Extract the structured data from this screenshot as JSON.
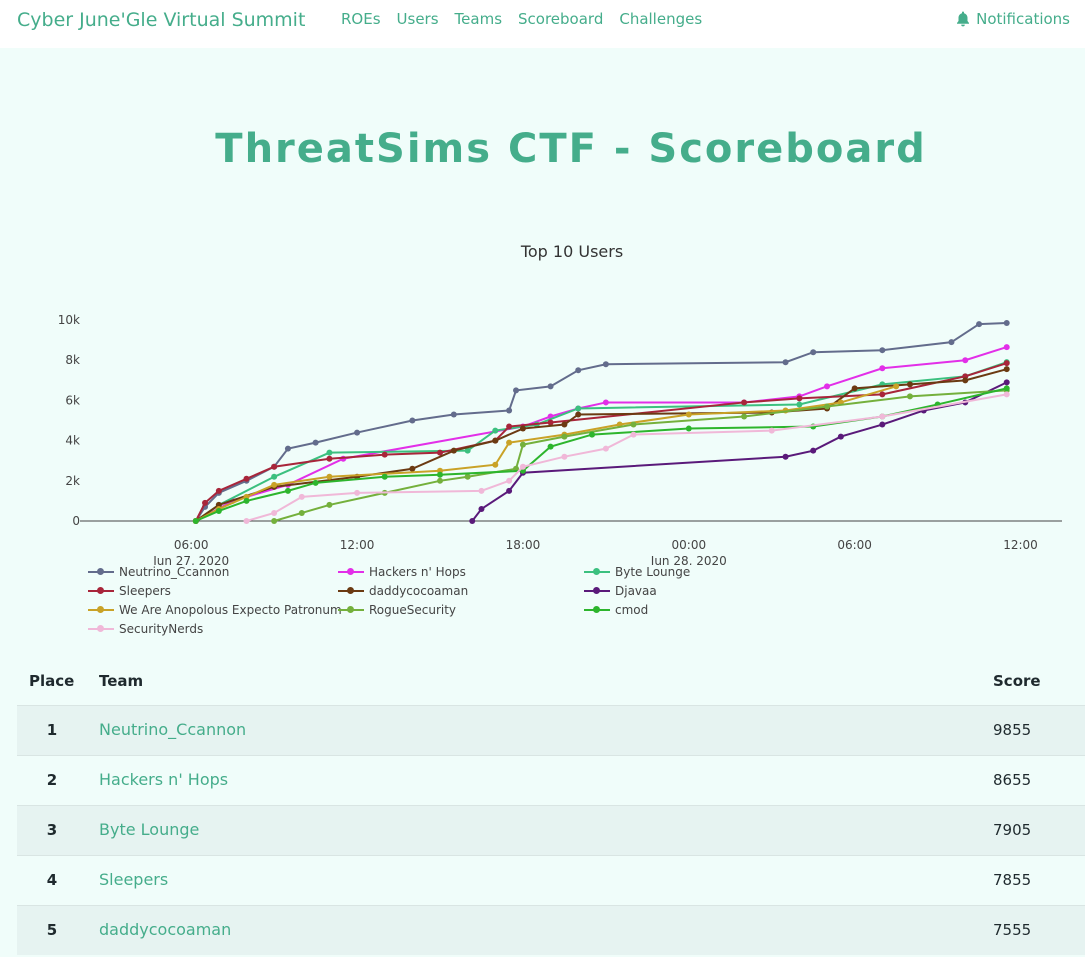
{
  "navbar": {
    "brand": "Cyber June'Gle Virtual Summit",
    "links": [
      "ROEs",
      "Users",
      "Teams",
      "Scoreboard",
      "Challenges"
    ],
    "notifications_label": "Notifications",
    "notifications_icon": "bell-icon"
  },
  "page": {
    "title": "ThreatSims CTF - Scoreboard"
  },
  "chart_data": {
    "type": "line",
    "title": "Top 10 Users",
    "x_axis": {
      "type": "date",
      "range": [
        "2020-06-27 02:16",
        "2020-06-28 13:30"
      ],
      "ticks": [
        {
          "value": "2020-06-27 06:00",
          "label": "06:00",
          "sublabel": "Jun 27, 2020"
        },
        {
          "value": "2020-06-27 12:00",
          "label": "12:00"
        },
        {
          "value": "2020-06-27 18:00",
          "label": "18:00"
        },
        {
          "value": "2020-06-28 00:00",
          "label": "00:00",
          "sublabel": "Jun 28, 2020"
        },
        {
          "value": "2020-06-28 06:00",
          "label": "06:00"
        },
        {
          "value": "2020-06-28 12:00",
          "label": "12:00"
        }
      ]
    },
    "y_axis": {
      "range": [
        0,
        10500
      ],
      "ticks": [
        {
          "value": 0,
          "label": "0"
        },
        {
          "value": 2000,
          "label": "2k"
        },
        {
          "value": 4000,
          "label": "4k"
        },
        {
          "value": 6000,
          "label": "6k"
        },
        {
          "value": 8000,
          "label": "8k"
        },
        {
          "value": 10000,
          "label": "10k"
        }
      ]
    },
    "grid": false,
    "legend": "bottom",
    "series": [
      {
        "name": "Neutrino_Ccannon",
        "color": "#636c8c",
        "points": [
          [
            "2020-06-27 06:10",
            0
          ],
          [
            "2020-06-27 06:30",
            700
          ],
          [
            "2020-06-27 07:00",
            1400
          ],
          [
            "2020-06-27 08:00",
            2000
          ],
          [
            "2020-06-27 09:00",
            2700
          ],
          [
            "2020-06-27 09:30",
            3600
          ],
          [
            "2020-06-27 10:30",
            3900
          ],
          [
            "2020-06-27 12:00",
            4400
          ],
          [
            "2020-06-27 14:00",
            5000
          ],
          [
            "2020-06-27 15:30",
            5300
          ],
          [
            "2020-06-27 17:30",
            5500
          ],
          [
            "2020-06-27 17:45",
            6500
          ],
          [
            "2020-06-27 19:00",
            6700
          ],
          [
            "2020-06-27 20:00",
            7500
          ],
          [
            "2020-06-27 21:00",
            7800
          ],
          [
            "2020-06-28 03:30",
            7900
          ],
          [
            "2020-06-28 04:30",
            8400
          ],
          [
            "2020-06-28 07:00",
            8500
          ],
          [
            "2020-06-28 09:30",
            8900
          ],
          [
            "2020-06-28 10:30",
            9800
          ],
          [
            "2020-06-28 11:30",
            9855
          ]
        ]
      },
      {
        "name": "Hackers n' Hops",
        "color": "#e22fe8",
        "points": [
          [
            "2020-06-27 06:10",
            0
          ],
          [
            "2020-06-27 07:30",
            1000
          ],
          [
            "2020-06-27 09:30",
            1800
          ],
          [
            "2020-06-27 11:30",
            3100
          ],
          [
            "2020-06-27 18:00",
            4700
          ],
          [
            "2020-06-27 19:00",
            5200
          ],
          [
            "2020-06-27 20:00",
            5600
          ],
          [
            "2020-06-27 21:00",
            5900
          ],
          [
            "2020-06-28 02:00",
            5900
          ],
          [
            "2020-06-28 04:00",
            6200
          ],
          [
            "2020-06-28 05:00",
            6700
          ],
          [
            "2020-06-28 07:00",
            7600
          ],
          [
            "2020-06-28 10:00",
            8000
          ],
          [
            "2020-06-28 11:30",
            8655
          ]
        ]
      },
      {
        "name": "Byte Lounge",
        "color": "#3bc07f",
        "points": [
          [
            "2020-06-27 06:10",
            0
          ],
          [
            "2020-06-27 07:00",
            800
          ],
          [
            "2020-06-27 09:00",
            2200
          ],
          [
            "2020-06-27 11:00",
            3400
          ],
          [
            "2020-06-27 16:00",
            3500
          ],
          [
            "2020-06-27 17:00",
            4500
          ],
          [
            "2020-06-27 18:30",
            4800
          ],
          [
            "2020-06-27 20:00",
            5600
          ],
          [
            "2020-06-28 04:00",
            5800
          ],
          [
            "2020-06-28 07:00",
            6800
          ],
          [
            "2020-06-28 10:00",
            7200
          ],
          [
            "2020-06-28 11:30",
            7905
          ]
        ]
      },
      {
        "name": "Sleepers",
        "color": "#a8253a",
        "points": [
          [
            "2020-06-27 06:10",
            0
          ],
          [
            "2020-06-27 06:30",
            900
          ],
          [
            "2020-06-27 07:00",
            1500
          ],
          [
            "2020-06-27 08:00",
            2100
          ],
          [
            "2020-06-27 09:00",
            2700
          ],
          [
            "2020-06-27 11:00",
            3100
          ],
          [
            "2020-06-27 13:00",
            3300
          ],
          [
            "2020-06-27 15:00",
            3400
          ],
          [
            "2020-06-27 17:00",
            4000
          ],
          [
            "2020-06-27 17:30",
            4700
          ],
          [
            "2020-06-27 19:00",
            4900
          ],
          [
            "2020-06-28 02:00",
            5900
          ],
          [
            "2020-06-28 04:00",
            6100
          ],
          [
            "2020-06-28 07:00",
            6300
          ],
          [
            "2020-06-28 10:00",
            7200
          ],
          [
            "2020-06-28 11:30",
            7855
          ]
        ]
      },
      {
        "name": "daddycocoaman",
        "color": "#6b3a12",
        "points": [
          [
            "2020-06-27 06:10",
            0
          ],
          [
            "2020-06-27 07:00",
            800
          ],
          [
            "2020-06-27 09:00",
            1700
          ],
          [
            "2020-06-27 12:00",
            2200
          ],
          [
            "2020-06-27 14:00",
            2600
          ],
          [
            "2020-06-27 15:30",
            3500
          ],
          [
            "2020-06-27 17:00",
            4000
          ],
          [
            "2020-06-27 18:00",
            4600
          ],
          [
            "2020-06-27 19:30",
            4800
          ],
          [
            "2020-06-27 20:00",
            5300
          ],
          [
            "2020-06-28 03:00",
            5400
          ],
          [
            "2020-06-28 05:00",
            5600
          ],
          [
            "2020-06-28 06:00",
            6600
          ],
          [
            "2020-06-28 08:00",
            6800
          ],
          [
            "2020-06-28 10:00",
            7000
          ],
          [
            "2020-06-28 11:30",
            7555
          ]
        ]
      },
      {
        "name": "Djavaa",
        "color": "#5a1a7a",
        "points": [
          [
            "2020-06-27 16:10",
            0
          ],
          [
            "2020-06-27 16:30",
            600
          ],
          [
            "2020-06-27 17:30",
            1500
          ],
          [
            "2020-06-27 18:00",
            2400
          ],
          [
            "2020-06-28 03:30",
            3200
          ],
          [
            "2020-06-28 04:30",
            3500
          ],
          [
            "2020-06-28 05:30",
            4200
          ],
          [
            "2020-06-28 07:00",
            4800
          ],
          [
            "2020-06-28 08:30",
            5500
          ],
          [
            "2020-06-28 10:00",
            5900
          ],
          [
            "2020-06-28 11:30",
            6900
          ]
        ]
      },
      {
        "name": "We Are Anopolous Expecto Patronum",
        "color": "#c9a227",
        "points": [
          [
            "2020-06-27 06:10",
            0
          ],
          [
            "2020-06-27 07:00",
            600
          ],
          [
            "2020-06-27 08:00",
            1200
          ],
          [
            "2020-06-27 09:00",
            1800
          ],
          [
            "2020-06-27 11:00",
            2200
          ],
          [
            "2020-06-27 15:00",
            2500
          ],
          [
            "2020-06-27 17:00",
            2800
          ],
          [
            "2020-06-27 17:30",
            3900
          ],
          [
            "2020-06-27 19:30",
            4300
          ],
          [
            "2020-06-27 21:30",
            4800
          ],
          [
            "2020-06-28 00:00",
            5300
          ],
          [
            "2020-06-28 03:30",
            5500
          ],
          [
            "2020-06-28 05:30",
            5900
          ],
          [
            "2020-06-28 07:30",
            6700
          ]
        ]
      },
      {
        "name": "RogueSecurity",
        "color": "#74b03c",
        "points": [
          [
            "2020-06-27 09:00",
            0
          ],
          [
            "2020-06-27 10:00",
            400
          ],
          [
            "2020-06-27 11:00",
            800
          ],
          [
            "2020-06-27 13:00",
            1400
          ],
          [
            "2020-06-27 15:00",
            2000
          ],
          [
            "2020-06-27 16:00",
            2200
          ],
          [
            "2020-06-27 17:45",
            2600
          ],
          [
            "2020-06-27 18:00",
            3800
          ],
          [
            "2020-06-27 19:30",
            4200
          ],
          [
            "2020-06-27 22:00",
            4800
          ],
          [
            "2020-06-28 02:00",
            5200
          ],
          [
            "2020-06-28 05:00",
            5700
          ],
          [
            "2020-06-28 08:00",
            6200
          ],
          [
            "2020-06-28 11:30",
            6500
          ]
        ]
      },
      {
        "name": "cmod",
        "color": "#2db52d",
        "points": [
          [
            "2020-06-27 06:10",
            0
          ],
          [
            "2020-06-27 07:00",
            500
          ],
          [
            "2020-06-27 08:00",
            1000
          ],
          [
            "2020-06-27 09:30",
            1500
          ],
          [
            "2020-06-27 10:30",
            1900
          ],
          [
            "2020-06-27 13:00",
            2200
          ],
          [
            "2020-06-27 15:00",
            2300
          ],
          [
            "2020-06-27 18:00",
            2500
          ],
          [
            "2020-06-27 19:00",
            3700
          ],
          [
            "2020-06-27 20:30",
            4300
          ],
          [
            "2020-06-28 00:00",
            4600
          ],
          [
            "2020-06-28 04:30",
            4700
          ],
          [
            "2020-06-28 07:00",
            5200
          ],
          [
            "2020-06-28 09:00",
            5800
          ],
          [
            "2020-06-28 11:30",
            6600
          ]
        ]
      },
      {
        "name": "SecurityNerds",
        "color": "#f0b8d8",
        "points": [
          [
            "2020-06-27 08:00",
            0
          ],
          [
            "2020-06-27 09:00",
            400
          ],
          [
            "2020-06-27 10:00",
            1200
          ],
          [
            "2020-06-27 12:00",
            1400
          ],
          [
            "2020-06-27 16:30",
            1500
          ],
          [
            "2020-06-27 17:30",
            2000
          ],
          [
            "2020-06-27 18:00",
            2700
          ],
          [
            "2020-06-27 19:30",
            3200
          ],
          [
            "2020-06-27 21:00",
            3600
          ],
          [
            "2020-06-27 22:00",
            4300
          ],
          [
            "2020-06-28 03:00",
            4500
          ],
          [
            "2020-06-28 07:00",
            5200
          ],
          [
            "2020-06-28 11:30",
            6300
          ]
        ]
      }
    ]
  },
  "scoreboard": {
    "headers": {
      "place": "Place",
      "team": "Team",
      "score": "Score"
    },
    "rows": [
      {
        "place": "1",
        "team": "Neutrino_Ccannon",
        "score": "9855"
      },
      {
        "place": "2",
        "team": "Hackers n' Hops",
        "score": "8655"
      },
      {
        "place": "3",
        "team": "Byte Lounge",
        "score": "7905"
      },
      {
        "place": "4",
        "team": "Sleepers",
        "score": "7855"
      },
      {
        "place": "5",
        "team": "daddycocoaman",
        "score": "7555"
      }
    ]
  }
}
